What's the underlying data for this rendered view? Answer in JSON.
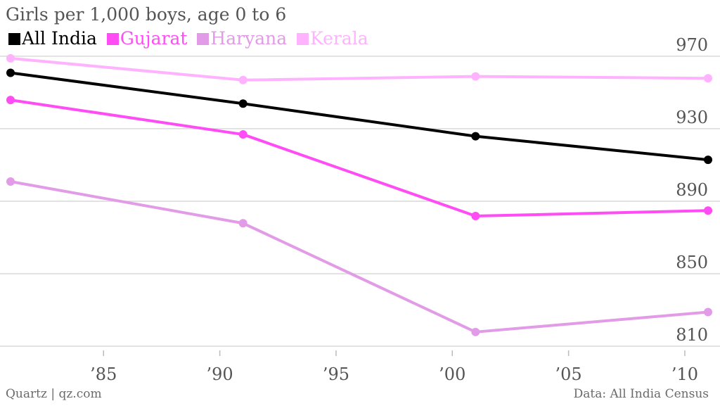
{
  "chart_data": {
    "type": "line",
    "title": "Girls per 1,000 boys, age 0 to 6",
    "x": [
      1981,
      1991,
      2001,
      2011
    ],
    "x_ticks": [
      1985,
      1990,
      1995,
      2000,
      2005,
      2010
    ],
    "x_tick_labels": [
      "’85",
      "’90",
      "’95",
      "’00",
      "’05",
      "’10"
    ],
    "xlim": [
      1981,
      2011
    ],
    "y_ticks": [
      970,
      930,
      890,
      850,
      810
    ],
    "y_tick_labels": [
      "970",
      "930",
      "890",
      "850",
      "810"
    ],
    "ylim": [
      810,
      975
    ],
    "grid": true,
    "legend_position": "top-left",
    "series": [
      {
        "name": "All India",
        "color": "#000000",
        "values": [
          962,
          945,
          927,
          914
        ]
      },
      {
        "name": "Gujarat",
        "color": "#ff4cf5",
        "values": [
          947,
          928,
          883,
          886
        ]
      },
      {
        "name": "Haryana",
        "color": "#e29be6",
        "values": [
          902,
          879,
          819,
          830
        ]
      },
      {
        "name": "Kerala",
        "color": "#ffb3ff",
        "values": [
          970,
          958,
          960,
          959
        ]
      }
    ]
  },
  "footer": {
    "source_left": "Quartz | qz.com",
    "source_right": "Data: All India Census"
  }
}
